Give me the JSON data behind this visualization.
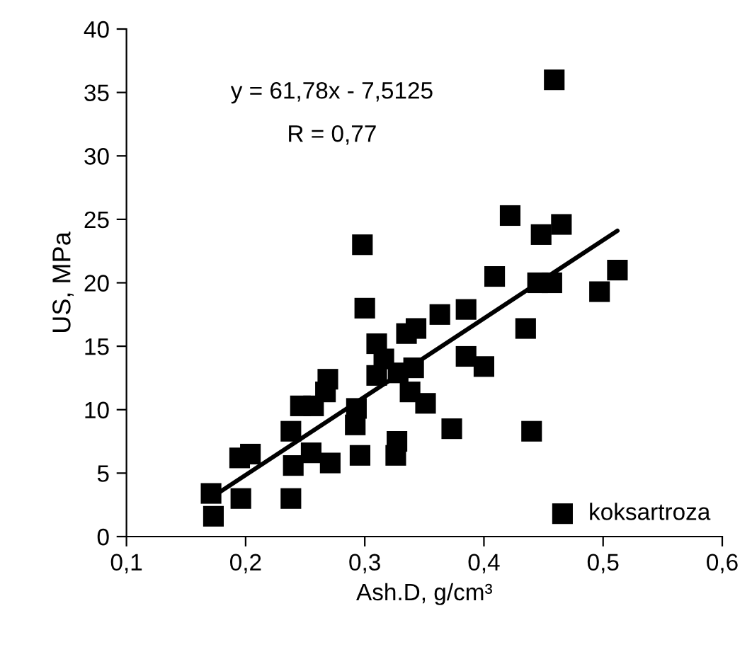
{
  "chart_data": {
    "type": "scatter",
    "xlabel": "Ash.D, g/cm³",
    "ylabel": "US, MPa",
    "annotations": [
      "y = 61,78x - 7,5125",
      "R = 0,77"
    ],
    "xlim": [
      0.1,
      0.6
    ],
    "xticks": [
      {
        "value": 0.1,
        "label": "0,1"
      },
      {
        "value": 0.2,
        "label": "0,2"
      },
      {
        "value": 0.3,
        "label": "0,3"
      },
      {
        "value": 0.4,
        "label": "0,4"
      },
      {
        "value": 0.5,
        "label": "0,5"
      },
      {
        "value": 0.6,
        "label": "0,6"
      }
    ],
    "ylim": [
      0,
      40
    ],
    "yticks": [
      0,
      5,
      10,
      15,
      20,
      25,
      30,
      35,
      40
    ],
    "grid": false,
    "legend": "bottom right",
    "marker": "square",
    "series": [
      {
        "name": "koksartroza",
        "color": "#000000",
        "x": [
          0.171,
          0.173,
          0.196,
          0.195,
          0.204,
          0.238,
          0.238,
          0.24,
          0.255,
          0.271,
          0.296,
          0.292,
          0.326,
          0.327,
          0.373,
          0.44,
          0.459,
          0.422,
          0.448,
          0.465,
          0.409,
          0.445,
          0.457,
          0.512,
          0.497,
          0.343,
          0.363,
          0.385,
          0.435,
          0.341,
          0.385,
          0.4,
          0.351,
          0.338,
          0.298,
          0.3,
          0.335,
          0.31,
          0.316,
          0.31,
          0.328,
          0.269,
          0.267,
          0.246,
          0.257,
          0.293
        ],
        "values": [
          3.4,
          1.6,
          3.0,
          6.2,
          6.5,
          3.0,
          8.3,
          5.6,
          6.6,
          5.8,
          6.4,
          8.8,
          6.4,
          7.5,
          8.5,
          8.3,
          36.0,
          25.3,
          23.8,
          24.6,
          20.5,
          20.0,
          20.0,
          21.0,
          19.3,
          16.4,
          17.5,
          17.9,
          16.4,
          13.3,
          14.2,
          13.4,
          10.5,
          11.4,
          23.0,
          18.0,
          16.0,
          15.2,
          14.0,
          12.7,
          12.9,
          12.4,
          11.4,
          10.3,
          10.3,
          10.1
        ]
      },
      {
        "type": "line",
        "color": "#000000",
        "marker": "none",
        "line_style": "solid",
        "x": [
          0.17,
          0.512
        ],
        "values": [
          3.0,
          24.1
        ]
      }
    ]
  }
}
